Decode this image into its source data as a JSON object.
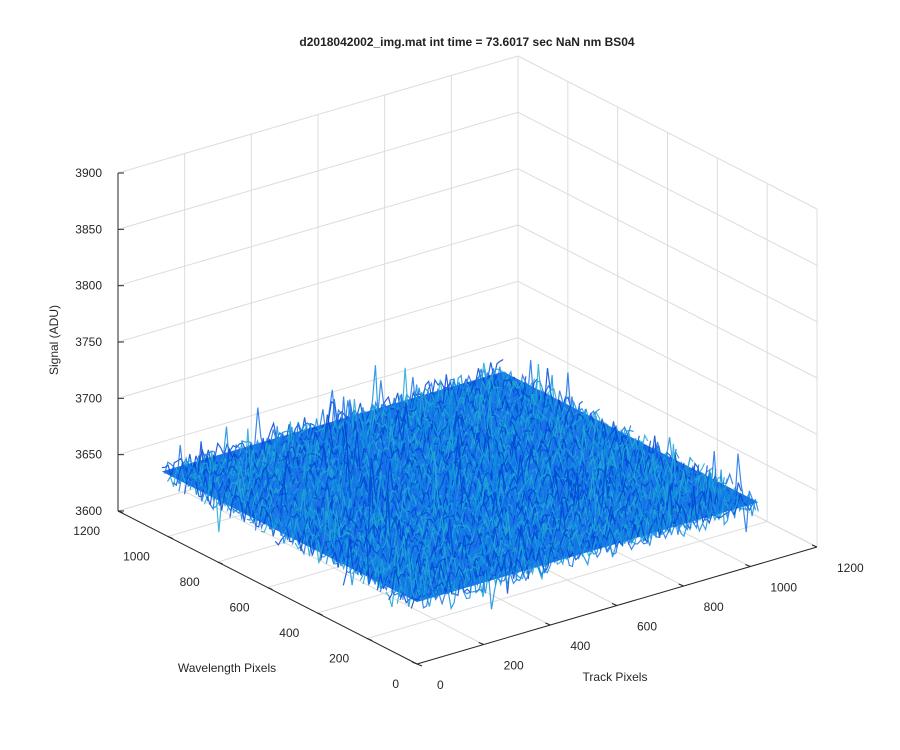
{
  "chart_data": {
    "type": "surface-3d",
    "title": "d2018042002_img.mat int time = 73.6017 sec   NaN nm BS04",
    "xlabel": "Track Pixels",
    "ylabel": "Wavelength Pixels",
    "zlabel": "Signal (ADU)",
    "xlim": [
      0,
      1200
    ],
    "ylim": [
      0,
      1200
    ],
    "zlim": [
      3600,
      3900
    ],
    "x_ticks": [
      "0",
      "200",
      "400",
      "600",
      "800",
      "1000",
      "1200"
    ],
    "y_ticks": [
      "0",
      "200",
      "400",
      "600",
      "800",
      "1000",
      "1200"
    ],
    "z_ticks": [
      "3600",
      "3650",
      "3700",
      "3750",
      "3800",
      "3850",
      "3900"
    ],
    "grid": true,
    "surface": {
      "x_range": [
        0,
        1024
      ],
      "y_range": [
        0,
        1024
      ],
      "mean": 3655,
      "noise_range": [
        3630,
        3690
      ],
      "colormap": "parula",
      "colors": [
        "#0047d6",
        "#1a72e8",
        "#0f8fe0",
        "#21a8d4"
      ]
    }
  }
}
